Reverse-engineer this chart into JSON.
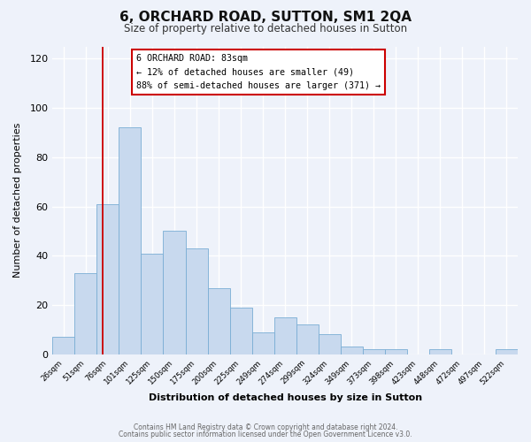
{
  "title": "6, ORCHARD ROAD, SUTTON, SM1 2QA",
  "subtitle": "Size of property relative to detached houses in Sutton",
  "xlabel": "Distribution of detached houses by size in Sutton",
  "ylabel": "Number of detached properties",
  "bar_color": "#c8d9ee",
  "bar_edge_color": "#7aadd4",
  "background_color": "#eef2fa",
  "grid_color": "#ffffff",
  "tick_labels": [
    "26sqm",
    "51sqm",
    "76sqm",
    "101sqm",
    "125sqm",
    "150sqm",
    "175sqm",
    "200sqm",
    "225sqm",
    "249sqm",
    "274sqm",
    "299sqm",
    "324sqm",
    "349sqm",
    "373sqm",
    "398sqm",
    "423sqm",
    "448sqm",
    "472sqm",
    "497sqm",
    "522sqm"
  ],
  "bar_heights": [
    7,
    33,
    61,
    92,
    41,
    50,
    43,
    27,
    19,
    9,
    15,
    12,
    8,
    3,
    2,
    2,
    0,
    2,
    0,
    0,
    2
  ],
  "ylim": [
    0,
    125
  ],
  "yticks": [
    0,
    20,
    40,
    60,
    80,
    100,
    120
  ],
  "annotation_title": "6 ORCHARD ROAD: 83sqm",
  "annotation_line1": "← 12% of detached houses are smaller (49)",
  "annotation_line2": "88% of semi-detached houses are larger (371) →",
  "annotation_box_color": "#ffffff",
  "annotation_box_edge_color": "#cc0000",
  "line_color": "#cc0000",
  "footnote1": "Contains HM Land Registry data © Crown copyright and database right 2024.",
  "footnote2": "Contains public sector information licensed under the Open Government Licence v3.0."
}
